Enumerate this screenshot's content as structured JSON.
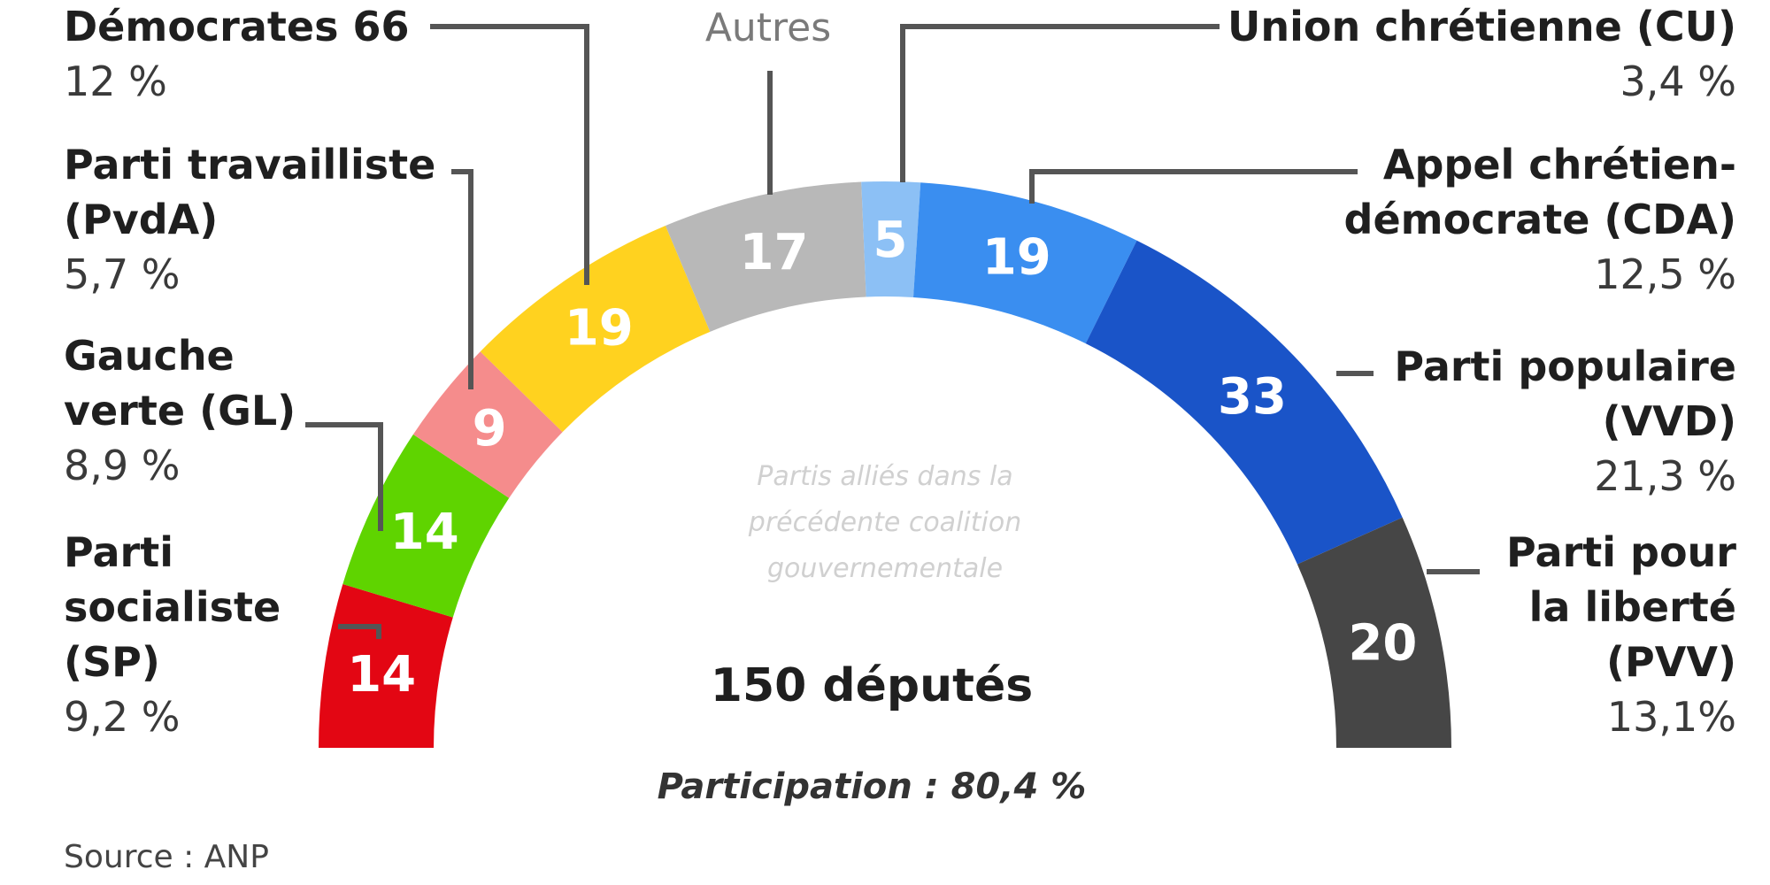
{
  "chart_data": {
    "type": "pie",
    "subtype": "semicircle-parliament",
    "center_title": "150 députés",
    "center_subtitle": "Participation : 80,4 %",
    "note": [
      "Partis alliés dans la",
      "précédente coalition",
      "gouvernementale"
    ],
    "source": "Source : ANP",
    "total_seats": 150,
    "segments": [
      {
        "name_lines": [
          "Parti",
          "socialiste",
          "(SP)"
        ],
        "seats": 14,
        "pct": "9,2 %",
        "color": "#e30613"
      },
      {
        "name_lines": [
          "Gauche",
          "verte (GL)"
        ],
        "seats": 14,
        "pct": "8,9 %",
        "color": "#5fd400"
      },
      {
        "name_lines": [
          "Parti travailliste",
          "(PvdA)"
        ],
        "seats": 9,
        "pct": "5,7 %",
        "color": "#f58c8c"
      },
      {
        "name_lines": [
          "Démocrates 66"
        ],
        "seats": 19,
        "pct": "12 %",
        "color": "#ffd21f"
      },
      {
        "name_lines": [
          "Autres"
        ],
        "seats": 17,
        "pct": "",
        "color": "#b8b8b8"
      },
      {
        "name_lines": [
          "Union chrétienne (CU)"
        ],
        "seats": 5,
        "pct": "3,4 %",
        "color": "#8cc0f5"
      },
      {
        "name_lines": [
          "Appel chrétien-",
          "démocrate (CDA)"
        ],
        "seats": 19,
        "pct": "12,5 %",
        "color": "#3a8ef0"
      },
      {
        "name_lines": [
          "Parti populaire",
          "(VVD)"
        ],
        "seats": 33,
        "pct": "21,3 %",
        "color": "#1a54c8"
      },
      {
        "name_lines": [
          "Parti pour",
          "la liberté",
          "(PVV)"
        ],
        "seats": 20,
        "pct": "13,1%",
        "color": "#464646"
      }
    ]
  }
}
